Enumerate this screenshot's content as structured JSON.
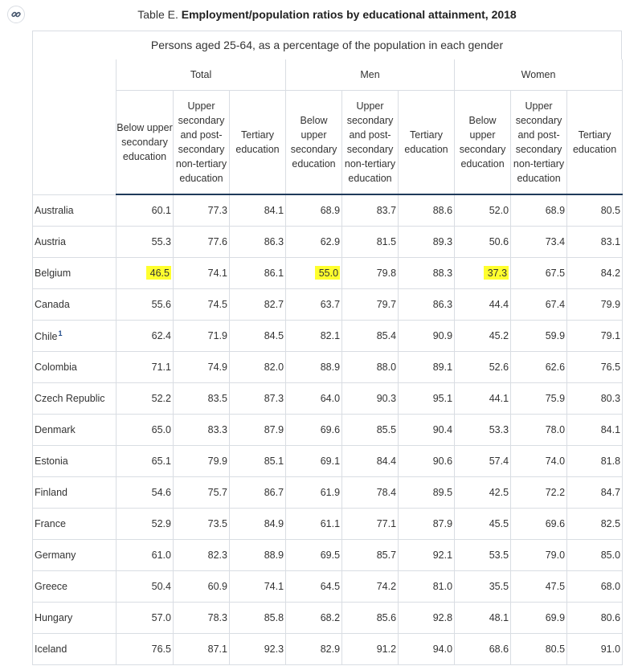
{
  "title": {
    "prefix": "Table E.",
    "bold": "Employment/population ratios by educational attainment, 2018"
  },
  "subtitle": "Persons aged 25-64, as a percentage of the population in each gender",
  "link_icon": "link-icon",
  "highlight_color": "#ffff2e",
  "column_groups": [
    "Total",
    "Men",
    "Women"
  ],
  "subcolumns": [
    [
      "Below upper",
      "secondary",
      "education"
    ],
    [
      "Upper",
      "secondary",
      "and post-",
      "secondary",
      "non-tertiary",
      "education"
    ],
    [
      "Tertiary",
      "education"
    ]
  ],
  "rows": [
    {
      "country": "Australia",
      "sup": "",
      "values": [
        "60.1",
        "77.3",
        "84.1",
        "68.9",
        "83.7",
        "88.6",
        "52.0",
        "68.9",
        "80.5"
      ],
      "highlight": []
    },
    {
      "country": "Austria",
      "sup": "",
      "values": [
        "55.3",
        "77.6",
        "86.3",
        "62.9",
        "81.5",
        "89.3",
        "50.6",
        "73.4",
        "83.1"
      ],
      "highlight": []
    },
    {
      "country": "Belgium",
      "sup": "",
      "values": [
        "46.5",
        "74.1",
        "86.1",
        "55.0",
        "79.8",
        "88.3",
        "37.3",
        "67.5",
        "84.2"
      ],
      "highlight": [
        0,
        3,
        6
      ]
    },
    {
      "country": "Canada",
      "sup": "",
      "values": [
        "55.6",
        "74.5",
        "82.7",
        "63.7",
        "79.7",
        "86.3",
        "44.4",
        "67.4",
        "79.9"
      ],
      "highlight": []
    },
    {
      "country": "Chile",
      "sup": "1",
      "values": [
        "62.4",
        "71.9",
        "84.5",
        "82.1",
        "85.4",
        "90.9",
        "45.2",
        "59.9",
        "79.1"
      ],
      "highlight": []
    },
    {
      "country": "Colombia",
      "sup": "",
      "values": [
        "71.1",
        "74.9",
        "82.0",
        "88.9",
        "88.0",
        "89.1",
        "52.6",
        "62.6",
        "76.5"
      ],
      "highlight": []
    },
    {
      "country": "Czech Republic",
      "sup": "",
      "values": [
        "52.2",
        "83.5",
        "87.3",
        "64.0",
        "90.3",
        "95.1",
        "44.1",
        "75.9",
        "80.3"
      ],
      "highlight": []
    },
    {
      "country": "Denmark",
      "sup": "",
      "values": [
        "65.0",
        "83.3",
        "87.9",
        "69.6",
        "85.5",
        "90.4",
        "53.3",
        "78.0",
        "84.1"
      ],
      "highlight": []
    },
    {
      "country": "Estonia",
      "sup": "",
      "values": [
        "65.1",
        "79.9",
        "85.1",
        "69.1",
        "84.4",
        "90.6",
        "57.4",
        "74.0",
        "81.8"
      ],
      "highlight": []
    },
    {
      "country": "Finland",
      "sup": "",
      "values": [
        "54.6",
        "75.7",
        "86.7",
        "61.9",
        "78.4",
        "89.5",
        "42.5",
        "72.2",
        "84.7"
      ],
      "highlight": []
    },
    {
      "country": "France",
      "sup": "",
      "values": [
        "52.9",
        "73.5",
        "84.9",
        "61.1",
        "77.1",
        "87.9",
        "45.5",
        "69.6",
        "82.5"
      ],
      "highlight": []
    },
    {
      "country": "Germany",
      "sup": "",
      "values": [
        "61.0",
        "82.3",
        "88.9",
        "69.5",
        "85.7",
        "92.1",
        "53.5",
        "79.0",
        "85.0"
      ],
      "highlight": []
    },
    {
      "country": "Greece",
      "sup": "",
      "values": [
        "50.4",
        "60.9",
        "74.1",
        "64.5",
        "74.2",
        "81.0",
        "35.5",
        "47.5",
        "68.0"
      ],
      "highlight": []
    },
    {
      "country": "Hungary",
      "sup": "",
      "values": [
        "57.0",
        "78.3",
        "85.8",
        "68.2",
        "85.6",
        "92.8",
        "48.1",
        "69.9",
        "80.6"
      ],
      "highlight": []
    },
    {
      "country": "Iceland",
      "sup": "",
      "values": [
        "76.5",
        "87.1",
        "92.3",
        "82.9",
        "91.2",
        "94.0",
        "68.6",
        "80.5",
        "91.0"
      ],
      "highlight": []
    }
  ]
}
